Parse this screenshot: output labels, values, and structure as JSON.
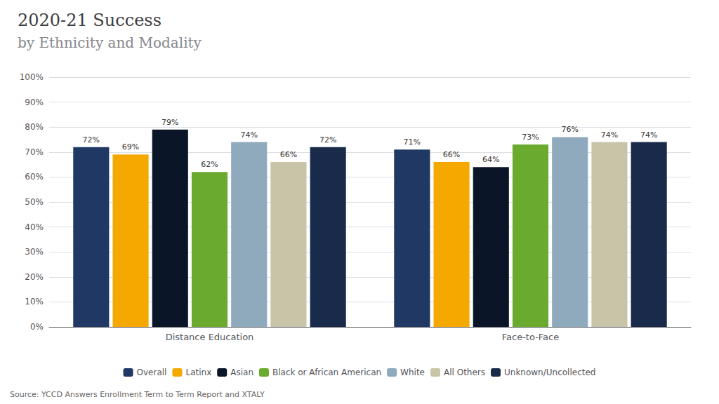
{
  "chart_data": {
    "type": "bar",
    "title": "2020-21 Success",
    "subtitle": "by Ethnicity and Modality",
    "categories": [
      "Distance Education",
      "Face-to-Face"
    ],
    "series": [
      {
        "name": "Overall",
        "color": "#1f3864",
        "values": [
          72,
          71
        ],
        "value_labels": [
          "72%",
          "71%"
        ]
      },
      {
        "name": "Latinx",
        "color": "#f5a800",
        "values": [
          69,
          66
        ],
        "value_labels": [
          "69%",
          "66%"
        ]
      },
      {
        "name": "Asian",
        "color": "#0a1628",
        "values": [
          79,
          64
        ],
        "value_labels": [
          "79%",
          "64%"
        ]
      },
      {
        "name": "Black or African American",
        "color": "#6aaa2e",
        "values": [
          62,
          73
        ],
        "value_labels": [
          "62%",
          "73%"
        ]
      },
      {
        "name": "White",
        "color": "#8faabc",
        "values": [
          74,
          76
        ],
        "value_labels": [
          "74%",
          "76%"
        ]
      },
      {
        "name": "All Others",
        "color": "#c8c4a8",
        "values": [
          66,
          74
        ],
        "value_labels": [
          "66%",
          "74%"
        ]
      },
      {
        "name": "Unknown/Uncollected",
        "color": "#1a2a4a",
        "values": [
          72,
          74
        ],
        "value_labels": [
          "72%",
          "74%"
        ]
      }
    ],
    "ylim": [
      0,
      100
    ],
    "yticks": [
      {
        "value": 0,
        "label": "0%"
      },
      {
        "value": 10,
        "label": "10%"
      },
      {
        "value": 20,
        "label": "20%"
      },
      {
        "value": 30,
        "label": "30%"
      },
      {
        "value": 40,
        "label": "40%"
      },
      {
        "value": 50,
        "label": "50%"
      },
      {
        "value": 60,
        "label": "60%"
      },
      {
        "value": 70,
        "label": "70%"
      },
      {
        "value": 80,
        "label": "80%"
      },
      {
        "value": 90,
        "label": "90%"
      },
      {
        "value": 100,
        "label": "100%"
      }
    ],
    "grid": true,
    "legend": "bottom",
    "data_labels": true,
    "annotations": [
      "Source: YCCD Answers Enrollment Term to Term Report and XTALY"
    ]
  }
}
